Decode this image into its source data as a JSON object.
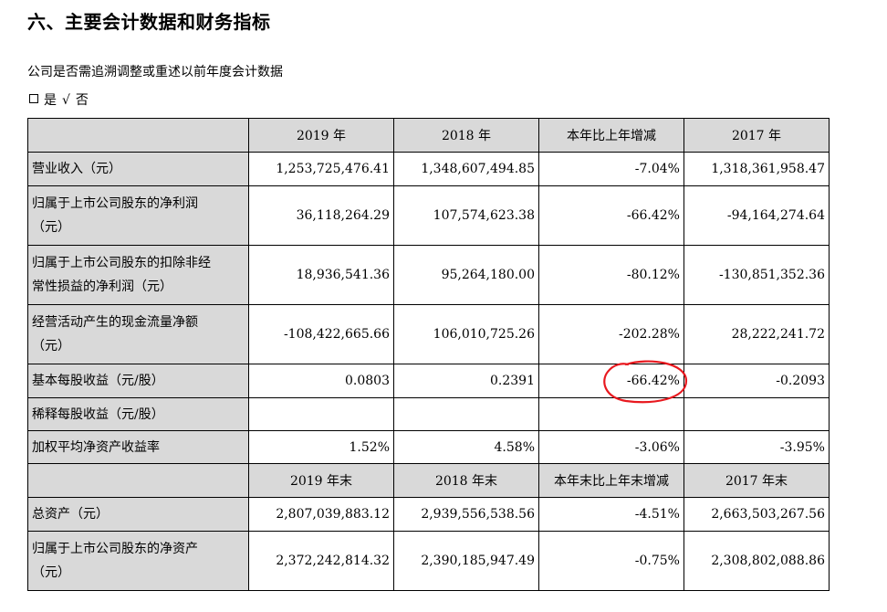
{
  "heading": "六、主要会计数据和财务指标",
  "question": "公司是否需追溯调整或重述以前年度会计数据",
  "answer": {
    "yes": "是",
    "check": "√",
    "no": "否"
  },
  "table": {
    "header1": [
      "2019 年",
      "2018 年",
      "本年比上年增减",
      "2017 年"
    ],
    "rows1": [
      {
        "label": "营业收入（元）",
        "values": [
          "1,253,725,476.41",
          "1,348,607,494.85",
          "-7.04%",
          "1,318,361,958.47"
        ]
      },
      {
        "label_line1": "归属于上市公司股东的净利润",
        "label_line2": "（元）",
        "values": [
          "36,118,264.29",
          "107,574,623.38",
          "-66.42%",
          "-94,164,274.64"
        ]
      },
      {
        "label_line1": "归属于上市公司股东的扣除非经",
        "label_line2": "常性损益的净利润（元）",
        "values": [
          "18,936,541.36",
          "95,264,180.00",
          "-80.12%",
          "-130,851,352.36"
        ]
      },
      {
        "label_line1": "经营活动产生的现金流量净额",
        "label_line2": "（元）",
        "values": [
          "-108,422,665.66",
          "106,010,725.26",
          "-202.28%",
          "28,222,241.72"
        ]
      },
      {
        "label": "基本每股收益（元/股）",
        "values": [
          "0.0803",
          "0.2391",
          "-66.42%",
          "-0.2093"
        ]
      },
      {
        "label": "稀释每股收益（元/股）",
        "values": [
          "",
          "",
          "",
          ""
        ]
      },
      {
        "label": "加权平均净资产收益率",
        "values": [
          "1.52%",
          "4.58%",
          "-3.06%",
          "-3.95%"
        ]
      }
    ],
    "header2": [
      "2019 年末",
      "2018 年末",
      "本年末比上年末增减",
      "2017 年末"
    ],
    "rows2": [
      {
        "label": "总资产（元）",
        "values": [
          "2,807,039,883.12",
          "2,939,556,538.56",
          "-4.51%",
          "2,663,503,267.56"
        ]
      },
      {
        "label_line1": "归属于上市公司股东的净资产",
        "label_line2": "（元）",
        "values": [
          "2,372,242,814.32",
          "2,390,185,947.49",
          "-0.75%",
          "2,308,802,088.86"
        ]
      }
    ]
  },
  "annotation_color": "#e8191f"
}
